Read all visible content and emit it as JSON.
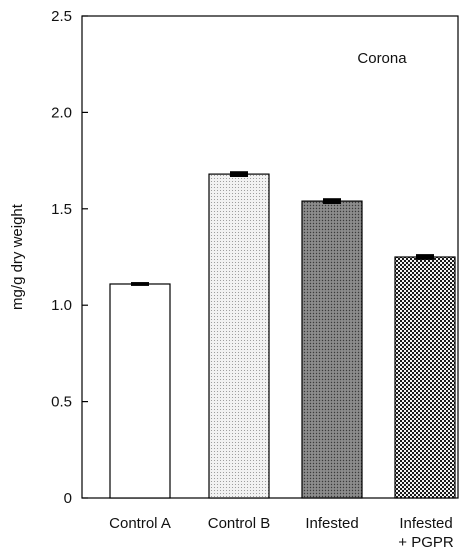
{
  "chart_data": {
    "type": "bar",
    "categories": [
      "Control A",
      "Control B",
      "Infested",
      "Infested\n+ PGPR"
    ],
    "category_lines": [
      [
        "Control A"
      ],
      [
        "Control B"
      ],
      [
        "Infested"
      ],
      [
        "Infested",
        "+ PGPR"
      ]
    ],
    "values": [
      1.11,
      1.68,
      1.54,
      1.25
    ],
    "errors": [
      0.01,
      0.015,
      0.015,
      0.015
    ],
    "fills": [
      "white",
      "light-dots",
      "dark-dots",
      "checker"
    ],
    "title": "",
    "annotation": "Corona",
    "xlabel": "",
    "ylabel": "mg/g dry weight",
    "ylim": [
      0,
      2.5
    ],
    "yticks": [
      0,
      0.5,
      1.0,
      1.5,
      2.0,
      2.5
    ],
    "ytick_labels": [
      "0",
      "0.5",
      "1.0",
      "1.5",
      "2.0",
      "2.5"
    ],
    "grid": false,
    "legend": "none"
  }
}
